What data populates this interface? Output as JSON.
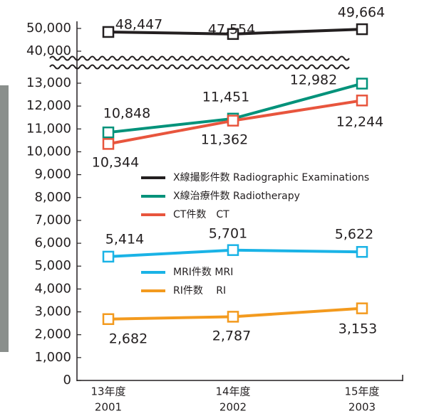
{
  "chart_data": {
    "type": "line",
    "categories": [
      [
        "13年度",
        "2001"
      ],
      [
        "14年度",
        "2002"
      ],
      [
        "15年度",
        "2003"
      ]
    ],
    "ylim": [
      [
        0,
        13000
      ],
      [
        40000,
        50000
      ]
    ],
    "yticks": [
      0,
      {
        "value": 1000,
        "label": "1,000"
      },
      {
        "value": 2000,
        "label": "2,000"
      },
      {
        "value": 3000,
        "label": "3,000"
      },
      {
        "value": 4000,
        "label": "4,000"
      },
      {
        "value": 5000,
        "label": "5,000"
      },
      {
        "value": 6000,
        "label": "6,000"
      },
      {
        "value": 7000,
        "label": "7,000"
      },
      {
        "value": 8000,
        "label": "8,000"
      },
      {
        "value": 9000,
        "label": "9,000"
      },
      {
        "value": 10000,
        "label": "10,000"
      },
      {
        "value": 11000,
        "label": "11,000"
      },
      {
        "value": 12000,
        "label": "12,000"
      },
      {
        "value": 13000,
        "label": "13,000"
      },
      {
        "value": 40000,
        "label": "40,000"
      },
      {
        "value": 50000,
        "label": "50,000"
      }
    ],
    "axis_break": true,
    "series": [
      {
        "name": "X線撮影件数 Radiographic Examinations",
        "color": "#231f20",
        "values": [
          48447,
          47554,
          49664
        ],
        "value_labels": [
          "48,447",
          "47,554",
          "49,664"
        ]
      },
      {
        "name": "X線治療件数 Radiotherapy",
        "color": "#00927a",
        "values": [
          10848,
          11451,
          12982
        ],
        "value_labels": [
          "10,848",
          "11,451",
          "12,982"
        ]
      },
      {
        "name": "CT件数　CT",
        "color": "#e8553d",
        "values": [
          10344,
          11362,
          12244
        ],
        "value_labels": [
          "10,344",
          "11,362",
          "12,244"
        ]
      },
      {
        "name": "MRI件数 MRI",
        "color": "#1ab3e6",
        "values": [
          5414,
          5701,
          5622
        ],
        "value_labels": [
          "5,414",
          "5,701",
          "5,622"
        ]
      },
      {
        "name": "RI件数　 RI",
        "color": "#f39a1e",
        "values": [
          2682,
          2787,
          3153
        ],
        "value_labels": [
          "2,682",
          "2,787",
          "3,153"
        ]
      }
    ]
  }
}
